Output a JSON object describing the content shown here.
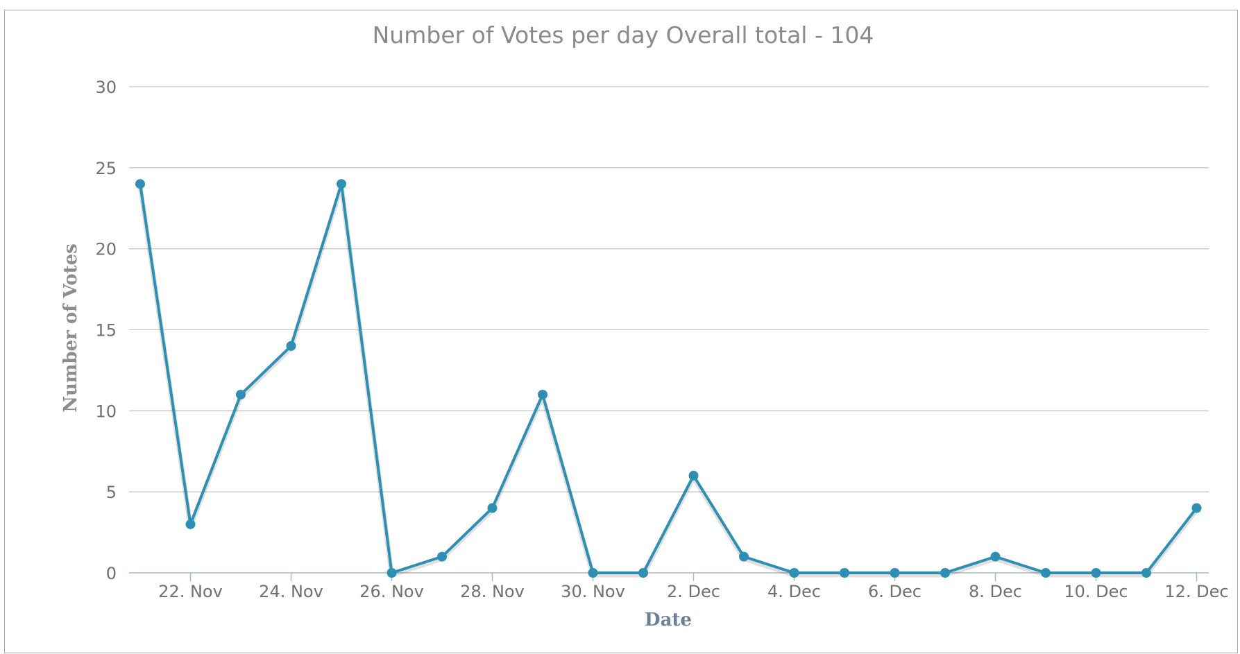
{
  "chart_data": {
    "type": "line",
    "title": "Number of Votes per day Overall total - 104",
    "xlabel": "Date",
    "ylabel": "Number of Votes",
    "ylim": [
      0,
      30
    ],
    "yticks": [
      "0",
      "5",
      "10",
      "15",
      "20",
      "25",
      "30"
    ],
    "xticks": [
      "22. Nov",
      "24. Nov",
      "26. Nov",
      "28. Nov",
      "30. Nov",
      "2. Dec",
      "4. Dec",
      "6. Dec",
      "8. Dec",
      "10. Dec",
      "12. Dec"
    ],
    "x": [
      "21. Nov",
      "22. Nov",
      "23. Nov",
      "24. Nov",
      "25. Nov",
      "26. Nov",
      "27. Nov",
      "28. Nov",
      "29. Nov",
      "30. Nov",
      "1. Dec",
      "2. Dec",
      "3. Dec",
      "4. Dec",
      "5. Dec",
      "6. Dec",
      "7. Dec",
      "8. Dec",
      "9. Dec",
      "10. Dec",
      "11. Dec",
      "12. Dec"
    ],
    "series": [
      {
        "values": [
          24,
          3,
          11,
          14,
          24,
          0,
          1,
          4,
          11,
          0,
          0,
          6,
          1,
          0,
          0,
          0,
          0,
          1,
          0,
          0,
          0,
          4
        ]
      }
    ],
    "grid": true,
    "legend": "none",
    "color": "#2f8fb3"
  }
}
